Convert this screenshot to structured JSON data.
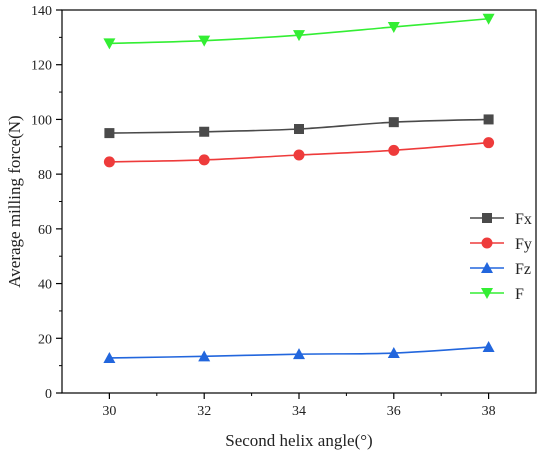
{
  "chart_data": {
    "type": "line",
    "title": "",
    "xlabel": "Second helix angle(°)",
    "ylabel": "Average milling force(N)",
    "x": [
      30,
      32,
      34,
      36,
      38
    ],
    "xticks": [
      "30",
      "32",
      "34",
      "36",
      "38"
    ],
    "yticks": [
      "0",
      "20",
      "40",
      "60",
      "80",
      "100",
      "120",
      "140"
    ],
    "xlim": [
      29,
      39
    ],
    "ylim": [
      0,
      140
    ],
    "grid": false,
    "legend_position": "right",
    "series": [
      {
        "name": "Fx",
        "values": [
          95,
          95.5,
          96.5,
          99,
          100
        ],
        "color": "#4a4a4a",
        "marker": "square"
      },
      {
        "name": "Fy",
        "values": [
          84.5,
          85.2,
          87,
          88.7,
          91.5
        ],
        "color": "#ee3b3b",
        "marker": "circle"
      },
      {
        "name": "Fz",
        "values": [
          12.8,
          13.4,
          14.2,
          14.6,
          16.8
        ],
        "color": "#2266dd",
        "marker": "triangle-up"
      },
      {
        "name": "F",
        "values": [
          127.8,
          128.8,
          130.8,
          133.8,
          136.8
        ],
        "color": "#33ee33",
        "marker": "triangle-down"
      }
    ]
  }
}
